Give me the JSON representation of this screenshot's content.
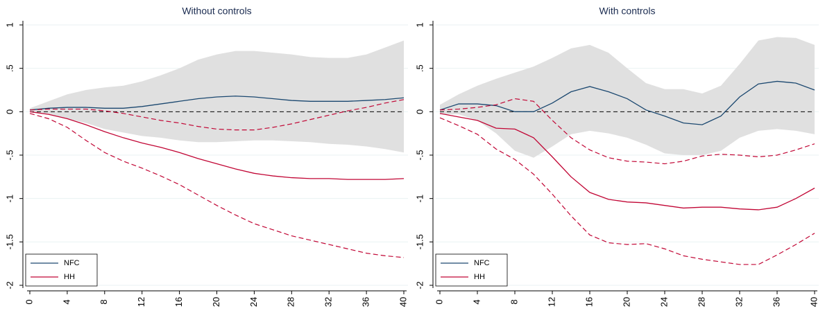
{
  "chart_data": [
    {
      "type": "line",
      "title": "Without controls",
      "x": [
        0,
        2,
        4,
        6,
        8,
        10,
        12,
        14,
        16,
        18,
        20,
        22,
        24,
        26,
        28,
        30,
        32,
        34,
        36,
        38,
        40
      ],
      "xlim": [
        0,
        40
      ],
      "xticks": [
        0,
        4,
        8,
        12,
        16,
        20,
        24,
        28,
        32,
        36,
        40
      ],
      "ylim": [
        -2,
        1
      ],
      "yticks": [
        1,
        {
          "value": 0.5,
          "label": ".5"
        },
        0,
        {
          "value": -0.5,
          "label": "-.5"
        },
        -1,
        {
          "value": -1.5,
          "label": "-1.5"
        },
        -2
      ],
      "grid": true,
      "reference_line": 0,
      "legend": "lower left",
      "band_color": "#e0e0e0",
      "series": [
        {
          "name": "NFC",
          "color": "#1a476f",
          "band": "area",
          "values": [
            0.02,
            0.04,
            0.05,
            0.05,
            0.04,
            0.04,
            0.06,
            0.09,
            0.12,
            0.15,
            0.17,
            0.18,
            0.17,
            0.15,
            0.13,
            0.12,
            0.12,
            0.12,
            0.13,
            0.14,
            0.16
          ],
          "upper": [
            0.04,
            0.12,
            0.2,
            0.25,
            0.28,
            0.3,
            0.35,
            0.42,
            0.5,
            0.6,
            0.66,
            0.7,
            0.7,
            0.68,
            0.66,
            0.63,
            0.62,
            0.62,
            0.66,
            0.74,
            0.82
          ],
          "lower": [
            0.0,
            -0.03,
            -0.08,
            -0.13,
            -0.2,
            -0.24,
            -0.28,
            -0.3,
            -0.33,
            -0.35,
            -0.35,
            -0.34,
            -0.33,
            -0.33,
            -0.34,
            -0.35,
            -0.37,
            -0.38,
            -0.4,
            -0.43,
            -0.47
          ]
        },
        {
          "name": "HH",
          "color": "#c10534",
          "band": "dashed",
          "values": [
            0.0,
            -0.03,
            -0.08,
            -0.15,
            -0.23,
            -0.3,
            -0.36,
            -0.41,
            -0.47,
            -0.54,
            -0.6,
            -0.66,
            -0.71,
            -0.74,
            -0.76,
            -0.77,
            -0.77,
            -0.78,
            -0.78,
            -0.78,
            -0.77
          ],
          "upper": [
            0.02,
            0.03,
            0.03,
            0.03,
            0.01,
            -0.02,
            -0.06,
            -0.1,
            -0.13,
            -0.17,
            -0.2,
            -0.21,
            -0.21,
            -0.18,
            -0.14,
            -0.09,
            -0.04,
            0.01,
            0.05,
            0.1,
            0.14
          ],
          "lower": [
            -0.02,
            -0.08,
            -0.18,
            -0.33,
            -0.47,
            -0.57,
            -0.65,
            -0.74,
            -0.84,
            -0.96,
            -1.08,
            -1.19,
            -1.29,
            -1.36,
            -1.43,
            -1.48,
            -1.53,
            -1.58,
            -1.63,
            -1.66,
            -1.68
          ]
        }
      ]
    },
    {
      "type": "line",
      "title": "With controls",
      "x": [
        0,
        2,
        4,
        6,
        8,
        10,
        12,
        14,
        16,
        18,
        20,
        22,
        24,
        26,
        28,
        30,
        32,
        34,
        36,
        38,
        40
      ],
      "xlim": [
        0,
        40
      ],
      "xticks": [
        0,
        4,
        8,
        12,
        16,
        20,
        24,
        28,
        32,
        36,
        40
      ],
      "ylim": [
        -2,
        1
      ],
      "yticks": [
        1,
        {
          "value": 0.5,
          "label": ".5"
        },
        0,
        {
          "value": -0.5,
          "label": "-.5"
        },
        -1,
        {
          "value": -1.5,
          "label": "-1.5"
        },
        -2
      ],
      "grid": true,
      "reference_line": 0,
      "legend": "lower left",
      "band_color": "#e0e0e0",
      "series": [
        {
          "name": "NFC",
          "color": "#1a476f",
          "band": "area",
          "values": [
            0.02,
            0.09,
            0.09,
            0.07,
            0.0,
            0.0,
            0.1,
            0.23,
            0.29,
            0.23,
            0.15,
            0.02,
            -0.05,
            -0.13,
            -0.15,
            -0.05,
            0.17,
            0.32,
            0.35,
            0.33,
            0.25
          ],
          "upper": [
            0.08,
            0.2,
            0.3,
            0.38,
            0.45,
            0.52,
            0.62,
            0.73,
            0.77,
            0.68,
            0.5,
            0.33,
            0.26,
            0.26,
            0.21,
            0.3,
            0.55,
            0.82,
            0.86,
            0.85,
            0.77
          ],
          "lower": [
            -0.03,
            -0.03,
            -0.1,
            -0.25,
            -0.45,
            -0.53,
            -0.4,
            -0.26,
            -0.22,
            -0.25,
            -0.3,
            -0.38,
            -0.48,
            -0.5,
            -0.5,
            -0.45,
            -0.3,
            -0.22,
            -0.2,
            -0.22,
            -0.26
          ]
        },
        {
          "name": "HH",
          "color": "#c10534",
          "band": "dashed",
          "values": [
            -0.02,
            -0.06,
            -0.1,
            -0.19,
            -0.2,
            -0.3,
            -0.52,
            -0.75,
            -0.93,
            -1.01,
            -1.04,
            -1.05,
            -1.08,
            -1.11,
            -1.1,
            -1.1,
            -1.12,
            -1.13,
            -1.1,
            -1.0,
            -0.88
          ],
          "upper": [
            0.02,
            0.03,
            0.05,
            0.08,
            0.15,
            0.12,
            -0.1,
            -0.3,
            -0.44,
            -0.53,
            -0.57,
            -0.58,
            -0.6,
            -0.57,
            -0.51,
            -0.49,
            -0.5,
            -0.52,
            -0.5,
            -0.44,
            -0.37
          ],
          "lower": [
            -0.07,
            -0.16,
            -0.26,
            -0.43,
            -0.55,
            -0.72,
            -0.95,
            -1.2,
            -1.42,
            -1.51,
            -1.53,
            -1.52,
            -1.58,
            -1.66,
            -1.7,
            -1.73,
            -1.76,
            -1.76,
            -1.65,
            -1.53,
            -1.4
          ]
        }
      ]
    }
  ]
}
